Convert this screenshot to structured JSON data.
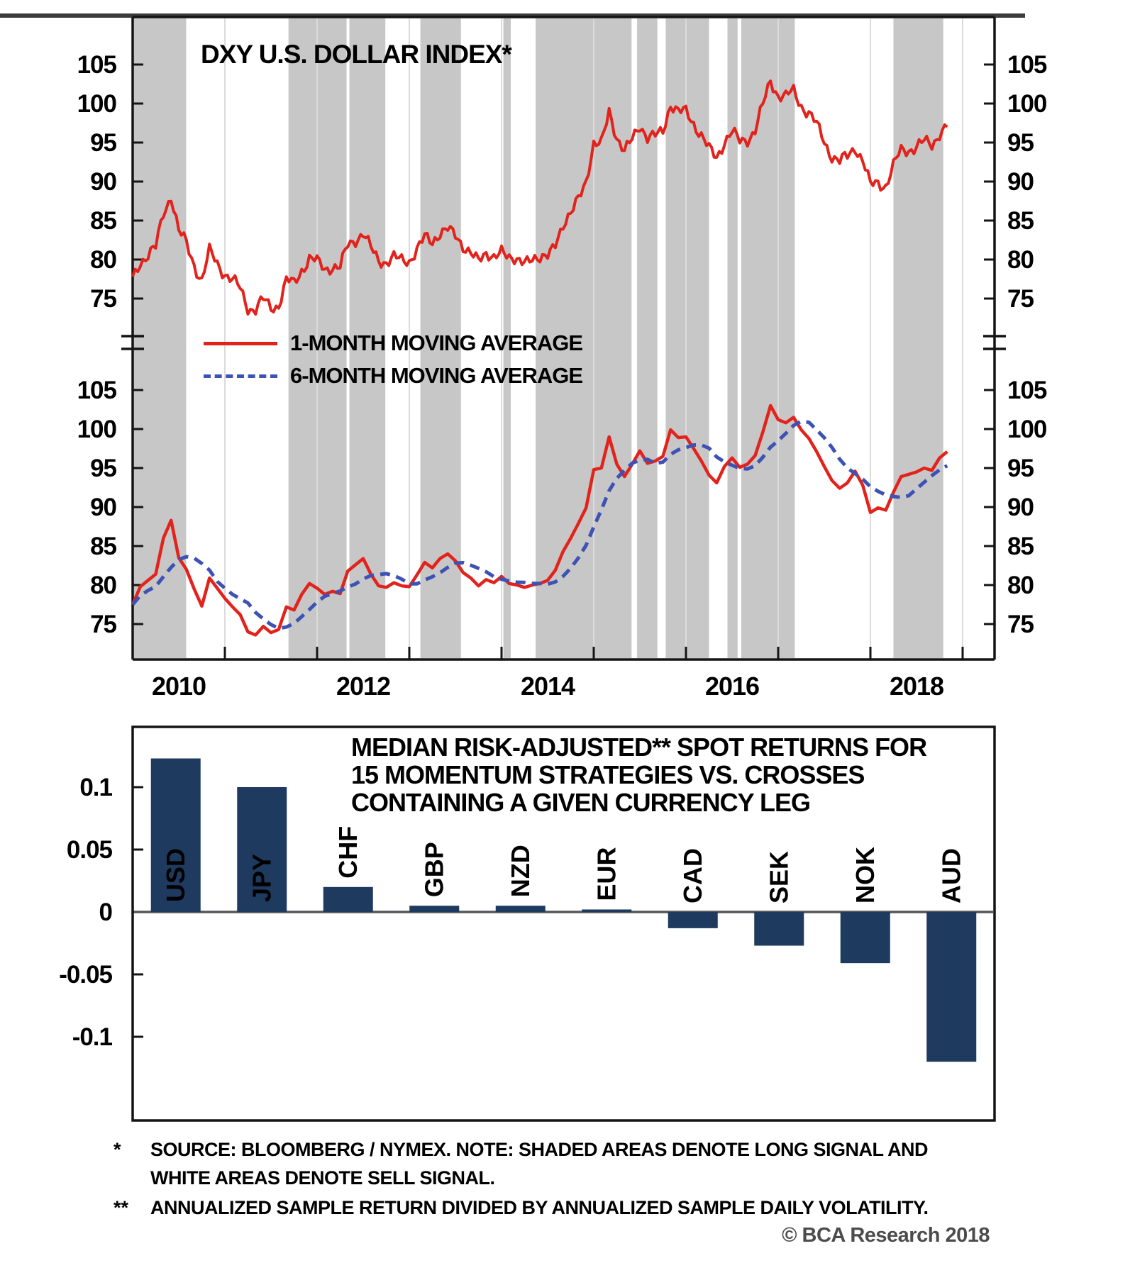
{
  "line_chart": {
    "title": "DXY U.S. DOLLAR INDEX*",
    "legend": [
      {
        "label": "1-MONTH MOVING AVERAGE",
        "style": "solid",
        "color": "#E2231C"
      },
      {
        "label": "6-MONTH MOVING AVERAGE",
        "style": "dashed",
        "color": "#3D52B4"
      }
    ]
  },
  "chart_data": [
    {
      "type": "line",
      "panel": "top",
      "title": "DXY U.S. DOLLAR INDEX*",
      "x_start_year": 2010.0,
      "x_step_years": 0.083333,
      "x_tick_years": [
        2011,
        2012,
        2013,
        2014,
        2015,
        2016,
        2017,
        2018,
        2019
      ],
      "x_label_years": [
        2010,
        2012,
        2014,
        2016,
        2018
      ],
      "yticks": [
        75,
        80,
        85,
        90,
        95,
        100,
        105
      ],
      "ylim": [
        70,
        111
      ],
      "grid": "light vertical year lines",
      "legend_position": "none",
      "shading_note": "shaded areas denote long signal, white areas denote sell signal",
      "shaded_bands_years": [
        [
          2010.0,
          2010.58
        ],
        [
          2011.69,
          2012.32
        ],
        [
          2012.35,
          2012.74
        ],
        [
          2013.12,
          2013.56
        ],
        [
          2014.02,
          2014.1
        ],
        [
          2014.37,
          2015.41
        ],
        [
          2015.47,
          2015.69
        ],
        [
          2015.78,
          2016.25
        ],
        [
          2016.45,
          2016.56
        ],
        [
          2016.6,
          2017.18
        ],
        [
          2018.25,
          2018.79
        ]
      ],
      "series": [
        {
          "name": "DXY U.S. Dollar Index",
          "color": "#E2231C",
          "style": "solid",
          "values": [
            77.5,
            79.8,
            80.6,
            81.4,
            86.0,
            88.3,
            83.5,
            82.0,
            79.5,
            77.3,
            80.9,
            79.6,
            78.3,
            77.2,
            76.2,
            74.0,
            73.6,
            74.7,
            73.9,
            74.3,
            77.2,
            76.8,
            78.8,
            80.2,
            79.6,
            78.8,
            79.2,
            78.9,
            81.8,
            82.6,
            83.4,
            81.4,
            79.9,
            79.7,
            80.3,
            79.9,
            79.8,
            81.3,
            82.9,
            82.2,
            83.4,
            84.0,
            83.1,
            81.6,
            80.9,
            79.9,
            80.7,
            80.3,
            81.1,
            80.2,
            80.0,
            79.7,
            80.0,
            80.2,
            80.6,
            81.9,
            84.3,
            86.0,
            87.9,
            89.9,
            94.8,
            95.0,
            99.0,
            95.5,
            93.9,
            95.5,
            97.2,
            95.6,
            95.9,
            96.5,
            99.9,
            98.9,
            99.0,
            97.5,
            95.9,
            94.1,
            93.1,
            95.2,
            96.3,
            95.1,
            95.5,
            96.6,
            99.6,
            103.0,
            101.2,
            100.8,
            101.5,
            99.9,
            98.8,
            97.1,
            95.2,
            93.4,
            92.4,
            93.1,
            94.6,
            92.8,
            89.3,
            89.9,
            89.6,
            91.9,
            93.9,
            94.2,
            94.5,
            95.0,
            94.7,
            96.3,
            97.1
          ]
        }
      ]
    },
    {
      "type": "line",
      "panel": "middle",
      "x_tick_years": [
        2011,
        2012,
        2013,
        2014,
        2015,
        2016,
        2017,
        2018,
        2019
      ],
      "x_label_years": [
        2010,
        2012,
        2014,
        2016,
        2018
      ],
      "yticks": [
        75,
        80,
        85,
        90,
        95,
        100,
        105
      ],
      "ylim": [
        70,
        106
      ],
      "legend_position": "top-left",
      "series": [
        {
          "name": "1-MONTH MOVING AVERAGE",
          "color": "#E2231C",
          "style": "solid",
          "source": "chart_data[0].series[0] (monthly values)"
        },
        {
          "name": "6-MONTH MOVING AVERAGE",
          "color": "#3D52B4",
          "style": "dashed",
          "derived": "trailing 6-month mean of the 1-month series"
        }
      ],
      "shaded_bands_years": "same as top panel"
    },
    {
      "type": "bar",
      "panel": "bottom",
      "title_lines": [
        "MEDIAN RISK-ADJUSTED** SPOT RETURNS FOR",
        "15 MOMENTUM STRATEGIES VS. CROSSES",
        "CONTAINING A GIVEN CURRENCY LEG"
      ],
      "categories": [
        "USD",
        "JPY",
        "CHF",
        "GBP",
        "NZD",
        "EUR",
        "CAD",
        "SEK",
        "NOK",
        "AUD"
      ],
      "values": [
        0.123,
        0.1,
        0.02,
        0.005,
        0.005,
        0.002,
        -0.013,
        -0.027,
        -0.041,
        -0.12
      ],
      "yticks": [
        0.1,
        0.05,
        0,
        -0.05,
        -0.1
      ],
      "ylim": [
        -0.145,
        0.15
      ],
      "bar_color": "#1E3A5F",
      "label_inside_color": "#FFFFFF",
      "label_outside_color": "#000000"
    }
  ],
  "footnotes": [
    {
      "marker": "*",
      "lines": [
        "SOURCE: BLOOMBERG / NYMEX. NOTE: SHADED AREAS DENOTE LONG SIGNAL AND",
        "WHITE AREAS DENOTE SELL SIGNAL."
      ]
    },
    {
      "marker": "**",
      "lines": [
        "ANNUALIZED SAMPLE RETURN DIVIDED BY ANNUALIZED SAMPLE DAILY VOLATILITY."
      ]
    }
  ],
  "copyright": "© BCA Research 2018",
  "colors": {
    "line_red": "#E2231C",
    "ma_blue": "#3D52B4",
    "band_gray": "#C7C7C7",
    "bar_navy": "#1E3A5F",
    "zero_line": "#54565A",
    "frame": "#141414",
    "gridline": "#DBDBDB",
    "text": "#000000",
    "muted_text": "#4C4C4C"
  }
}
